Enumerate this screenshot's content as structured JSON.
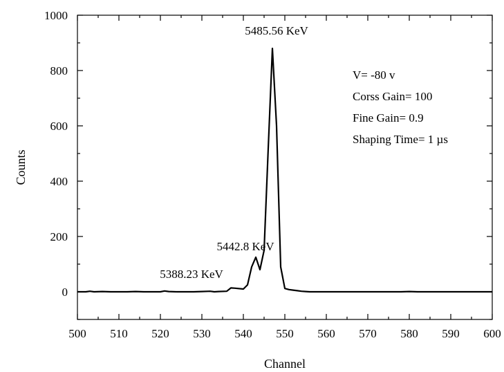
{
  "chart_data": {
    "type": "line",
    "xlabel": "Channel",
    "ylabel": "Counts",
    "xlim": [
      500,
      600
    ],
    "ylim": [
      -100,
      1000
    ],
    "x_ticks": [
      500,
      510,
      520,
      530,
      540,
      550,
      560,
      570,
      580,
      590,
      600
    ],
    "y_ticks": [
      0,
      200,
      400,
      600,
      800,
      1000
    ],
    "grid": false,
    "series": [
      {
        "x": [
          500,
          502,
          503,
          504,
          506,
          508,
          512,
          514,
          516,
          518,
          520,
          521,
          522,
          524,
          526,
          528,
          530,
          532,
          533,
          534,
          536,
          537,
          538,
          540,
          541,
          542,
          543,
          544,
          545,
          546,
          547,
          548,
          549,
          550,
          551,
          552,
          553,
          554,
          555,
          556,
          560,
          570,
          578,
          580,
          582,
          590,
          600
        ],
        "y": [
          0,
          0,
          2,
          0,
          1,
          0,
          0,
          1,
          0,
          0,
          0,
          3,
          1,
          0,
          0,
          0,
          1,
          2,
          0,
          1,
          2,
          14,
          13,
          10,
          25,
          90,
          125,
          80,
          150,
          520,
          880,
          600,
          90,
          12,
          8,
          6,
          4,
          2,
          1,
          0,
          0,
          0,
          0,
          1,
          0,
          0,
          0
        ]
      }
    ],
    "annotations": [
      {
        "text": "5485.56 KeV",
        "x": 548,
        "y": 930
      },
      {
        "text": "5442.8 KeV",
        "x": 540.5,
        "y": 150
      },
      {
        "text": "5388.23 KeV",
        "x": 527.5,
        "y": 50
      }
    ],
    "info_box": [
      "V= -80 v",
      "Corss Gain= 100",
      "Fine Gain= 0.9",
      "Shaping Time= 1 µs"
    ]
  }
}
